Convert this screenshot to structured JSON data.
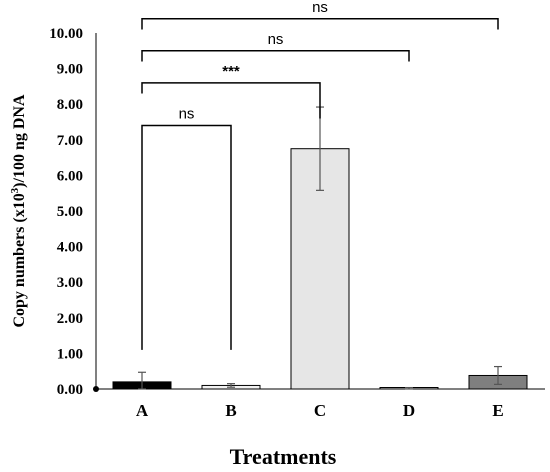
{
  "chart_data": {
    "type": "bar",
    "categories": [
      "A",
      "B",
      "C",
      "D",
      "E"
    ],
    "values": [
      0.2,
      0.1,
      6.75,
      0.02,
      0.38
    ],
    "errors": [
      0.27,
      0.05,
      1.17,
      0.02,
      0.25
    ],
    "colors": [
      "#000000",
      "#f2f2f2",
      "#e6e6e6",
      "#d9d9d9",
      "#7f7f7f"
    ],
    "xlabel": "Treatments",
    "ylabel_main": "Copy numbers (x10",
    "ylabel_sup": "3",
    "ylabel_tail": ")/100 ng DNA",
    "ylim": [
      0,
      10
    ],
    "yticks": [
      "0.00",
      "1.00",
      "2.00",
      "3.00",
      "4.00",
      "5.00",
      "6.00",
      "7.00",
      "8.00",
      "9.00",
      "10.00"
    ],
    "grid": false,
    "legend": "none",
    "comparisons": [
      {
        "from": "A",
        "to": "B",
        "label": "ns",
        "level": 7.4
      },
      {
        "from": "A",
        "to": "C",
        "label": "***",
        "level": 8.6
      },
      {
        "from": "A",
        "to": "D",
        "label": "ns",
        "level": 9.5
      },
      {
        "from": "A",
        "to": "E",
        "label": "ns",
        "level": 10.4
      }
    ]
  }
}
